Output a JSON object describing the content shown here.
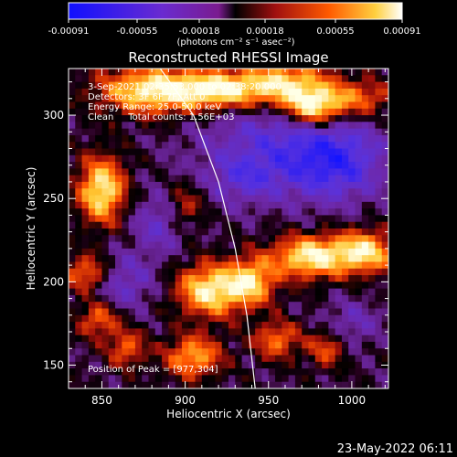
{
  "chart_data": {
    "type": "heatmap",
    "title": "Reconstructed RHESSI Image",
    "xlabel": "Heliocentric X (arcsec)",
    "ylabel": "Heliocentric Y (arcsec)",
    "xlim": [
      830,
      1022
    ],
    "ylim": [
      136,
      328
    ],
    "xticks": [
      850,
      900,
      950,
      1000
    ],
    "yticks": [
      150,
      200,
      250,
      300
    ],
    "colorbar": {
      "ticks": [
        "-0.00091",
        "-0.00055",
        "-0.00018",
        "0.00018",
        "0.00055",
        "0.00091"
      ],
      "range": [
        -0.00091,
        0.00091
      ],
      "unit_label": "(photons cm⁻² s⁻¹ asec⁻²)"
    },
    "info_lines": [
      "3-Sep-2021 02:35:53.000 to 02:38:20.000",
      "Detectors: 3F 6F 7F, Att 0",
      "Energy Range: 25.0-50.0 keV",
      "Clean     Total counts: 1.56E+03"
    ],
    "peak_label": "Position of Peak = [977,304]",
    "peak": [
      977,
      304
    ],
    "footer": "23-May-2022 06:11",
    "limb": [
      [
        885,
        328
      ],
      [
        905,
        300
      ],
      [
        920,
        260
      ],
      [
        930,
        220
      ],
      [
        937,
        180
      ],
      [
        942,
        136
      ]
    ],
    "sources": [
      {
        "x": 850,
        "y": 255,
        "sx": 10,
        "sy": 14,
        "amp": 1.0
      },
      {
        "x": 842,
        "y": 205,
        "sx": 10,
        "sy": 8,
        "amp": 0.75
      },
      {
        "x": 848,
        "y": 178,
        "sx": 9,
        "sy": 8,
        "amp": 0.6
      },
      {
        "x": 865,
        "y": 160,
        "sx": 8,
        "sy": 8,
        "amp": 0.55
      },
      {
        "x": 880,
        "y": 315,
        "sx": 22,
        "sy": 10,
        "amp": 1.0
      },
      {
        "x": 920,
        "y": 315,
        "sx": 18,
        "sy": 8,
        "amp": 0.9
      },
      {
        "x": 960,
        "y": 318,
        "sx": 20,
        "sy": 10,
        "amp": 1.0
      },
      {
        "x": 977,
        "y": 304,
        "sx": 12,
        "sy": 8,
        "amp": 1.0
      },
      {
        "x": 1005,
        "y": 310,
        "sx": 15,
        "sy": 8,
        "amp": 0.6
      },
      {
        "x": 915,
        "y": 195,
        "sx": 14,
        "sy": 11,
        "amp": 1.0
      },
      {
        "x": 940,
        "y": 200,
        "sx": 10,
        "sy": 10,
        "amp": 0.8
      },
      {
        "x": 975,
        "y": 215,
        "sx": 16,
        "sy": 9,
        "amp": 1.0
      },
      {
        "x": 1008,
        "y": 218,
        "sx": 13,
        "sy": 9,
        "amp": 0.9
      },
      {
        "x": 905,
        "y": 155,
        "sx": 12,
        "sy": 9,
        "amp": 0.75
      },
      {
        "x": 955,
        "y": 165,
        "sx": 10,
        "sy": 8,
        "amp": 0.6
      },
      {
        "x": 900,
        "y": 245,
        "sx": 8,
        "sy": 10,
        "amp": 0.45
      },
      {
        "x": 985,
        "y": 160,
        "sx": 8,
        "sy": 8,
        "amp": 0.5
      }
    ],
    "negatives": [
      {
        "x": 960,
        "y": 285,
        "sx": 35,
        "sy": 22,
        "amp": -0.5
      },
      {
        "x": 990,
        "y": 270,
        "sx": 20,
        "sy": 15,
        "amp": -0.55
      },
      {
        "x": 860,
        "y": 200,
        "sx": 15,
        "sy": 12,
        "amp": -0.45
      },
      {
        "x": 885,
        "y": 235,
        "sx": 12,
        "sy": 12,
        "amp": -0.4
      },
      {
        "x": 935,
        "y": 262,
        "sx": 15,
        "sy": 10,
        "amp": -0.35
      },
      {
        "x": 1000,
        "y": 175,
        "sx": 12,
        "sy": 10,
        "amp": -0.3
      }
    ]
  }
}
